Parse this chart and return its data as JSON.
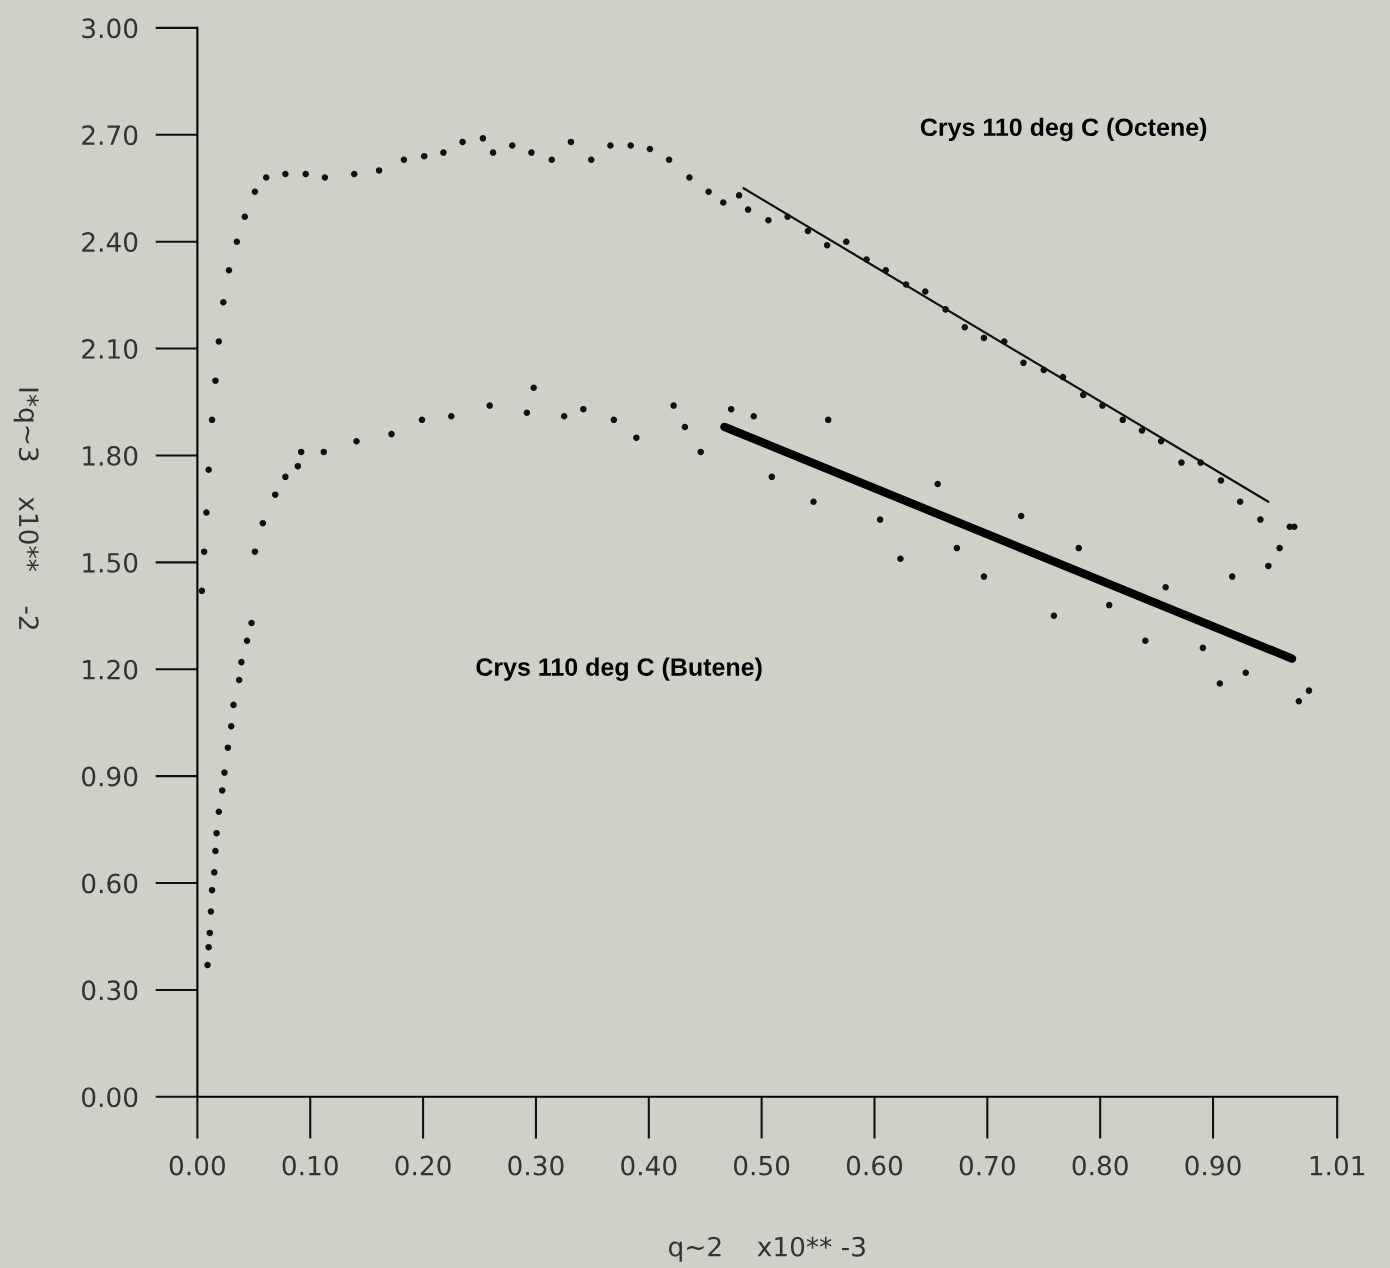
{
  "chart_data": {
    "type": "scatter",
    "xlabel": "q~2    x10** -3",
    "ylabel": "I*q~3    x10**    -2",
    "xlim": [
      0,
      1.01
    ],
    "ylim": [
      0,
      3.0
    ],
    "xticks": [
      {
        "value": 0,
        "label": "0.00"
      },
      {
        "value": 0.1,
        "label": "0.10"
      },
      {
        "value": 0.2,
        "label": "0.20"
      },
      {
        "value": 0.3,
        "label": "0.30"
      },
      {
        "value": 0.4,
        "label": "0.40"
      },
      {
        "value": 0.5,
        "label": "0.50"
      },
      {
        "value": 0.6,
        "label": "0.60"
      },
      {
        "value": 0.7,
        "label": "0.70"
      },
      {
        "value": 0.8,
        "label": "0.80"
      },
      {
        "value": 0.9,
        "label": "0.90"
      },
      {
        "value": 1.01,
        "label": "1.01"
      }
    ],
    "yticks": [
      {
        "value": 0,
        "label": "0.00"
      },
      {
        "value": 0.3,
        "label": "0.30"
      },
      {
        "value": 0.6,
        "label": "0.60"
      },
      {
        "value": 0.9,
        "label": "0.90"
      },
      {
        "value": 1.2,
        "label": "1.20"
      },
      {
        "value": 1.5,
        "label": "1.50"
      },
      {
        "value": 1.8,
        "label": "1.80"
      },
      {
        "value": 2.1,
        "label": "2.10"
      },
      {
        "value": 2.4,
        "label": "2.40"
      },
      {
        "value": 2.7,
        "label": "2.70"
      },
      {
        "value": 3.0,
        "label": "3.00"
      }
    ],
    "grid": false,
    "legend": false,
    "marker": "circle",
    "series": [
      {
        "type": "scatter",
        "color": "#111111",
        "x": [
          0.004,
          0.006,
          0.008,
          0.01,
          0.013,
          0.016,
          0.019,
          0.023,
          0.028,
          0.035,
          0.042,
          0.051,
          0.061,
          0.078,
          0.096,
          0.113,
          0.139,
          0.161,
          0.183,
          0.201,
          0.218,
          0.235,
          0.253,
          0.262,
          0.279,
          0.296,
          0.314,
          0.331,
          0.349,
          0.366,
          0.384,
          0.401,
          0.418,
          0.436,
          0.453,
          0.466,
          0.48,
          0.488,
          0.506,
          0.523,
          0.541,
          0.558,
          0.575,
          0.593,
          0.61,
          0.628,
          0.645,
          0.663,
          0.68,
          0.697,
          0.715,
          0.732,
          0.75,
          0.767,
          0.785,
          0.802,
          0.82,
          0.837,
          0.854,
          0.872,
          0.889,
          0.907,
          0.924,
          0.942,
          0.959,
          0.968
        ],
        "values": [
          1.42,
          1.53,
          1.64,
          1.76,
          1.9,
          2.01,
          2.12,
          2.23,
          2.32,
          2.4,
          2.47,
          2.54,
          2.58,
          2.59,
          2.59,
          2.58,
          2.59,
          2.6,
          2.63,
          2.64,
          2.65,
          2.68,
          2.69,
          2.65,
          2.67,
          2.65,
          2.63,
          2.68,
          2.63,
          2.67,
          2.67,
          2.66,
          2.63,
          2.58,
          2.54,
          2.51,
          2.53,
          2.49,
          2.46,
          2.47,
          2.43,
          2.39,
          2.4,
          2.35,
          2.32,
          2.28,
          2.26,
          2.21,
          2.16,
          2.13,
          2.12,
          2.06,
          2.04,
          2.02,
          1.97,
          1.94,
          1.9,
          1.87,
          1.84,
          1.78,
          1.78,
          1.73,
          1.67,
          1.62,
          1.54,
          1.6
        ]
      },
      {
        "type": "scatter",
        "color": "#111111",
        "x": [
          0.009,
          0.01,
          0.011,
          0.012,
          0.013,
          0.015,
          0.016,
          0.017,
          0.019,
          0.022,
          0.024,
          0.027,
          0.03,
          0.032,
          0.037,
          0.039,
          0.044,
          0.048,
          0.051,
          0.058,
          0.069,
          0.078,
          0.089,
          0.092,
          0.112,
          0.141,
          0.172,
          0.199,
          0.225,
          0.259,
          0.292,
          0.298,
          0.325,
          0.342,
          0.369,
          0.389,
          0.422,
          0.432,
          0.446,
          0.473,
          0.493,
          0.509,
          0.546,
          0.559,
          0.605,
          0.623,
          0.656,
          0.673,
          0.697,
          0.73,
          0.759,
          0.781,
          0.808,
          0.84,
          0.858,
          0.891,
          0.906,
          0.917,
          0.929,
          0.949,
          0.972,
          0.976,
          0.985
        ],
        "values": [
          0.37,
          0.42,
          0.46,
          0.52,
          0.58,
          0.63,
          0.69,
          0.74,
          0.8,
          0.86,
          0.91,
          0.98,
          1.04,
          1.1,
          1.17,
          1.22,
          1.28,
          1.33,
          1.53,
          1.61,
          1.69,
          1.74,
          1.77,
          1.81,
          1.81,
          1.84,
          1.86,
          1.9,
          1.91,
          1.94,
          1.92,
          1.99,
          1.91,
          1.93,
          1.9,
          1.85,
          1.94,
          1.88,
          1.81,
          1.93,
          1.91,
          1.74,
          1.67,
          1.9,
          1.62,
          1.51,
          1.72,
          1.54,
          1.46,
          1.63,
          1.35,
          1.54,
          1.38,
          1.28,
          1.43,
          1.26,
          1.16,
          1.46,
          1.19,
          1.49,
          1.6,
          1.11,
          1.14
        ]
      },
      {
        "type": "line",
        "marker": "none",
        "color": "#111111",
        "x": [
          0.484,
          0.949
        ],
        "values": [
          2.55,
          1.67
        ]
      },
      {
        "type": "line",
        "marker": "none",
        "color": "#000000",
        "x": [
          0.467,
          0.97
        ],
        "values": [
          1.88,
          1.23
        ]
      }
    ],
    "annotations": [
      "Crys 110 deg C (Octene)",
      "Crys 110 deg C (Butene)"
    ]
  }
}
